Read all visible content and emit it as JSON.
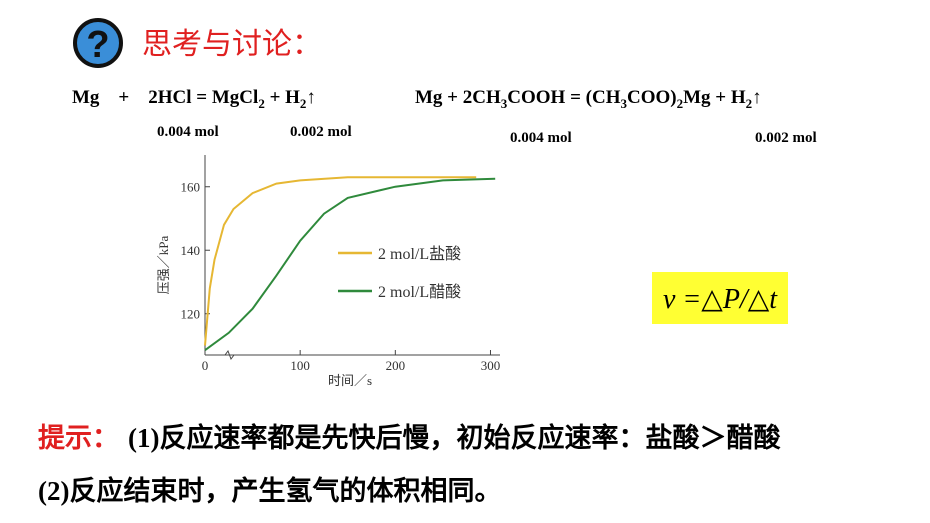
{
  "header": {
    "icon": "?",
    "title": "思考与讨论："
  },
  "equations": [
    {
      "parts": [
        "Mg    +    2HCl = MgCl",
        "2",
        " + H",
        "2",
        "↑"
      ],
      "amounts": [
        "0.004 mol",
        "0.002 mol"
      ]
    },
    {
      "parts": [
        "Mg + 2CH",
        "3",
        "COOH = (CH",
        "3",
        "COO)",
        "2",
        "Mg + H",
        "2",
        "↑"
      ],
      "amounts": [
        "0.004 mol",
        "0.002 mol"
      ]
    }
  ],
  "formula": "v =△P/△t",
  "hints": {
    "label": "提示：",
    "lines": [
      "(1)反应速率都是先快后慢，初始反应速率：盐酸＞醋酸",
      "(2)反应结束时，产生氢气的体积相同。"
    ]
  },
  "chart_data": {
    "type": "line",
    "xlabel": "时间／s",
    "ylabel": "压强／kPa",
    "xlim": [
      0,
      310
    ],
    "xticks": [
      0,
      100,
      200,
      300
    ],
    "ylim": [
      107,
      170
    ],
    "yticks": [
      120,
      140,
      160
    ],
    "series": [
      {
        "name": "2 mol/L盐酸",
        "color": "#e6b733",
        "x": [
          0,
          5,
          10,
          20,
          30,
          50,
          75,
          100,
          150,
          200,
          285
        ],
        "values": [
          110,
          128,
          137,
          148,
          153,
          158,
          161,
          162,
          163,
          163,
          163
        ]
      },
      {
        "name": "2 mol/L醋酸",
        "color": "#2f8a3c",
        "x": [
          0,
          25,
          50,
          75,
          100,
          125,
          150,
          200,
          250,
          305
        ],
        "values": [
          108.5,
          114,
          121.6,
          132,
          143,
          151.5,
          156.5,
          160,
          162,
          162.5
        ]
      }
    ]
  }
}
